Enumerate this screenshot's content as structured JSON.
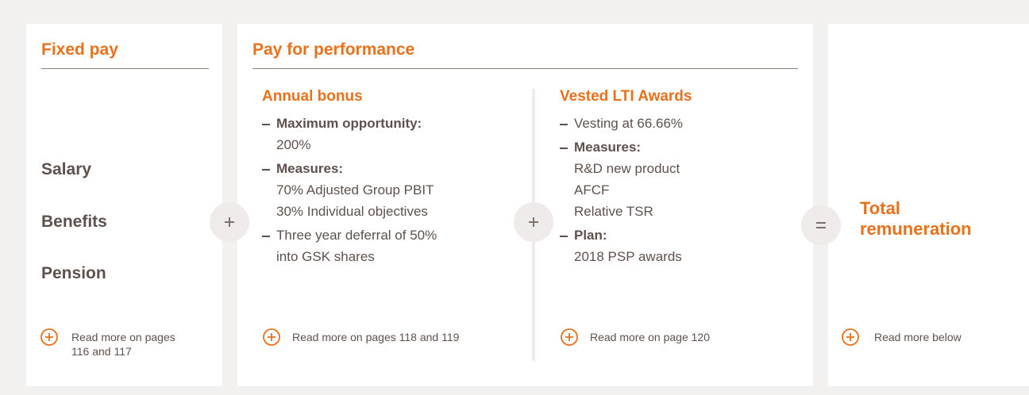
{
  "fixed_pay": {
    "title": "Fixed pay",
    "items": [
      "Salary",
      "Benefits",
      "Pension"
    ],
    "link": [
      "Read more on pages",
      "116 and 117"
    ]
  },
  "pay_for_performance": {
    "title": "Pay for performance",
    "columns": [
      {
        "title": "Annual bonus",
        "bullets": [
          {
            "label": "Maximum opportunity:",
            "lines": [
              "200%"
            ]
          },
          {
            "label": "Measures:",
            "lines": [
              "70% Adjusted Group PBIT",
              "30% Individual objectives"
            ]
          },
          {
            "lines": [
              "Three year deferral of 50%",
              "into GSK shares"
            ]
          }
        ],
        "link": "Read more on pages 118 and 119"
      },
      {
        "title": "Vested LTI Awards",
        "bullets": [
          {
            "lines": [
              "Vesting at 66.66%"
            ]
          },
          {
            "label": "Measures:",
            "lines": [
              "R&D new product",
              "AFCF",
              "Relative TSR"
            ]
          },
          {
            "label": "Plan:",
            "lines": [
              "2018 PSP awards"
            ]
          }
        ],
        "link": "Read more on page 120"
      }
    ]
  },
  "total": {
    "title": [
      "Total",
      "remuneration"
    ],
    "link": "Read more below"
  }
}
